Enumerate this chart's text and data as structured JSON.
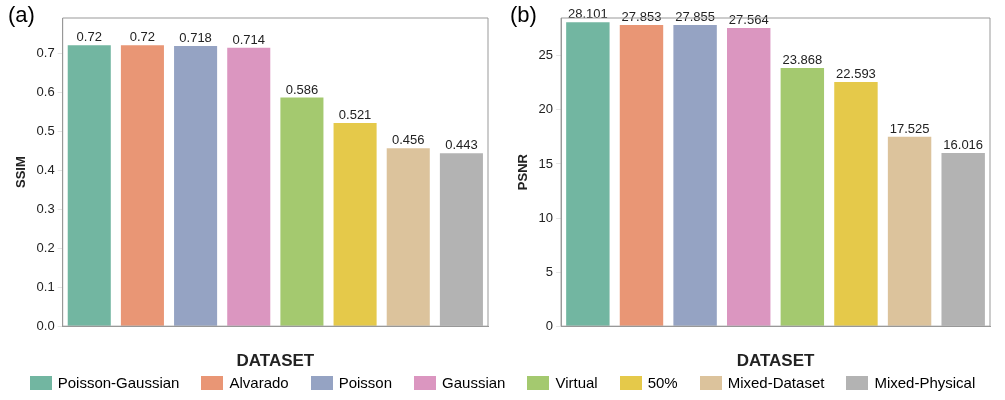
{
  "chart_data": [
    {
      "type": "bar",
      "title": "(a)",
      "xlabel": "DATASET",
      "ylabel": "SSIM",
      "categories": [
        null,
        null,
        null,
        null,
        null,
        null,
        null,
        null
      ],
      "series": [
        {
          "name": "Poisson-Gaussian",
          "color": "#72b6a1",
          "values": [
            0.72,
            null,
            null,
            null,
            null,
            null,
            null,
            null
          ]
        },
        {
          "name": "Alvarado",
          "color": "#e99675",
          "values": [
            null,
            0.72,
            null,
            null,
            null,
            null,
            null,
            null
          ]
        },
        {
          "name": "Poisson",
          "color": "#95a3c3",
          "values": [
            null,
            null,
            0.718,
            null,
            null,
            null,
            null,
            null
          ]
        },
        {
          "name": "Gaussian",
          "color": "#db96c0",
          "values": [
            null,
            null,
            null,
            0.714,
            null,
            null,
            null,
            null
          ]
        },
        {
          "name": "Virtual",
          "color": "#a4c96f",
          "values": [
            null,
            null,
            null,
            null,
            0.586,
            null,
            null,
            null
          ]
        },
        {
          "name": "50%",
          "color": "#e5c94a",
          "values": [
            null,
            null,
            null,
            null,
            null,
            0.521,
            null,
            null
          ]
        },
        {
          "name": "Mixed-Dataset",
          "color": "#dcc39c",
          "values": [
            null,
            null,
            null,
            null,
            null,
            null,
            0.456,
            null
          ]
        },
        {
          "name": "Mixed-Physical",
          "color": "#b3b3b3",
          "values": [
            null,
            null,
            null,
            null,
            null,
            null,
            null,
            0.443
          ]
        }
      ],
      "ylim": [
        0,
        0.79
      ],
      "yticks": [
        {
          "value": 0,
          "label": "0.0"
        },
        0.1,
        0.2,
        0.3,
        0.4,
        0.5,
        0.6,
        0.7
      ],
      "grid": false,
      "data_labels": true,
      "legend": "bottom"
    },
    {
      "type": "bar",
      "title": "(b)",
      "xlabel": "DATASET",
      "ylabel": "PSNR",
      "categories": [
        null,
        null,
        null,
        null,
        null,
        null,
        null,
        null
      ],
      "series": [
        {
          "name": "Poisson-Gaussian",
          "color": "#72b6a1",
          "values": [
            28.101,
            null,
            null,
            null,
            null,
            null,
            null,
            null
          ]
        },
        {
          "name": "Alvarado",
          "color": "#e99675",
          "values": [
            null,
            27.853,
            null,
            null,
            null,
            null,
            null,
            null
          ]
        },
        {
          "name": "Poisson",
          "color": "#95a3c3",
          "values": [
            null,
            null,
            27.855,
            null,
            null,
            null,
            null,
            null
          ]
        },
        {
          "name": "Gaussian",
          "color": "#db96c0",
          "values": [
            null,
            null,
            null,
            27.564,
            null,
            null,
            null,
            null
          ]
        },
        {
          "name": "Virtual",
          "color": "#a4c96f",
          "values": [
            null,
            null,
            null,
            null,
            23.868,
            null,
            null,
            null
          ]
        },
        {
          "name": "50%",
          "color": "#e5c94a",
          "values": [
            null,
            null,
            null,
            null,
            null,
            22.593,
            null,
            null
          ]
        },
        {
          "name": "Mixed-Dataset",
          "color": "#dcc39c",
          "values": [
            null,
            null,
            null,
            null,
            null,
            null,
            17.525,
            null
          ]
        },
        {
          "name": "Mixed-Physical",
          "color": "#b3b3b3",
          "values": [
            null,
            null,
            null,
            null,
            null,
            null,
            null,
            16.016
          ]
        }
      ],
      "ylim": [
        0,
        28.5
      ],
      "yticks": [
        0,
        5,
        10,
        15,
        20,
        25
      ],
      "grid": false,
      "data_labels": true,
      "legend": "bottom"
    }
  ]
}
